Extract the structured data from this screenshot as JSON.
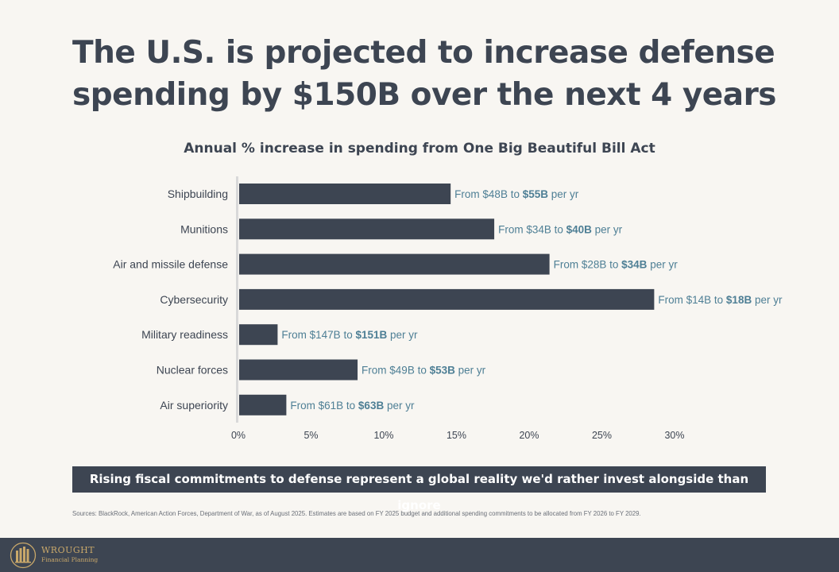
{
  "headline": {
    "line1": "The U.S. is projected to increase defense",
    "line2": "spending by $150B over the next 4 years"
  },
  "chart_data": {
    "type": "bar",
    "orientation": "horizontal",
    "title": "Annual % increase in spending from One Big Beautiful Bill Act",
    "categories": [
      "Shipbuilding",
      "Munitions",
      "Air and missile defense",
      "Cybersecurity",
      "Military readiness",
      "Nuclear forces",
      "Air superiority"
    ],
    "values": [
      14.6,
      17.6,
      21.4,
      28.6,
      2.7,
      8.2,
      3.3
    ],
    "value_unit": "%",
    "xlim": [
      0,
      30
    ],
    "xticks": [
      "0%",
      "5%",
      "10%",
      "15%",
      "20%",
      "25%",
      "30%"
    ],
    "xtick_values": [
      0,
      5,
      10,
      15,
      20,
      25,
      30
    ],
    "grid": false,
    "bar_color": "#3d4552",
    "label_color": "#4e7f95",
    "annotations": [
      {
        "prefix": "From $48B to ",
        "bold": "$55B",
        "suffix": " per yr"
      },
      {
        "prefix": "From $34B to ",
        "bold": "$40B",
        "suffix": " per yr"
      },
      {
        "prefix": "From $28B to ",
        "bold": "$34B",
        "suffix": " per yr"
      },
      {
        "prefix": "From $14B to ",
        "bold": "$18B",
        "suffix": " per yr"
      },
      {
        "prefix": "From $147B to ",
        "bold": "$151B",
        "suffix": " per yr"
      },
      {
        "prefix": "From $49B to ",
        "bold": "$53B",
        "suffix": " per yr"
      },
      {
        "prefix": "From $61B to ",
        "bold": "$63B",
        "suffix": " per yr"
      }
    ]
  },
  "banner": "Rising fiscal commitments to defense represent a global reality we'd rather invest alongside than ignore",
  "sources": "Sources: BlackRock, American Action Forces, Department of War, as of August 2025. Estimates are based on FY 2025 budget and additional spending commitments to be allocated from FY 2026 to FY 2029.",
  "footer": {
    "logo_name": "WROUGHT",
    "logo_sub": "Financial Planning",
    "logo_color": "#c9a86a"
  }
}
